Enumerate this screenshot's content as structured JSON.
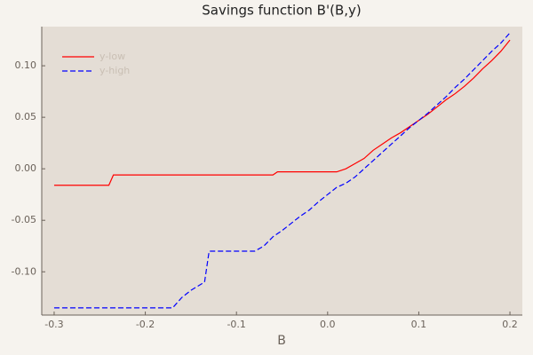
{
  "chart_data": {
    "type": "line",
    "title": "Savings function B'(B,y)",
    "x_label": "B",
    "x": [
      -0.3,
      -0.24,
      -0.235,
      -0.17,
      -0.16,
      -0.15,
      -0.135,
      -0.13,
      -0.08,
      -0.07,
      -0.06,
      -0.055,
      -0.05,
      -0.04,
      -0.03,
      -0.02,
      -0.01,
      0,
      0.01,
      0.02,
      0.03,
      0.04,
      0.05,
      0.06,
      0.07,
      0.08,
      0.09,
      0.1,
      0.11,
      0.12,
      0.13,
      0.14,
      0.15,
      0.16,
      0.17,
      0.18,
      0.19,
      0.2
    ],
    "series": [
      {
        "name": "y-low",
        "color": "#ff0000",
        "dash": "solid",
        "values": [
          -0.016,
          -0.016,
          -0.006,
          -0.006,
          -0.006,
          -0.006,
          -0.006,
          -0.006,
          -0.006,
          -0.006,
          -0.006,
          -0.003,
          -0.003,
          -0.003,
          -0.003,
          -0.003,
          -0.003,
          -0.003,
          -0.003,
          0.0,
          0.005,
          0.01,
          0.018,
          0.024,
          0.03,
          0.035,
          0.041,
          0.047,
          0.053,
          0.06,
          0.067,
          0.073,
          0.08,
          0.088,
          0.097,
          0.105,
          0.114,
          0.125
        ]
      },
      {
        "name": "y-high",
        "color": "#0000ff",
        "dash": "dashed",
        "values": [
          -0.135,
          -0.135,
          -0.135,
          -0.135,
          -0.125,
          -0.118,
          -0.11,
          -0.08,
          -0.08,
          -0.075,
          -0.066,
          -0.063,
          -0.06,
          -0.053,
          -0.046,
          -0.04,
          -0.032,
          -0.025,
          -0.018,
          -0.014,
          -0.008,
          0.0,
          0.008,
          0.016,
          0.024,
          0.032,
          0.04,
          0.047,
          0.054,
          0.062,
          0.07,
          0.079,
          0.087,
          0.096,
          0.105,
          0.114,
          0.122,
          0.132
        ]
      }
    ],
    "xlim": [
      -0.3136,
      0.2136
    ],
    "ylim": [
      -0.142,
      0.138
    ],
    "xticks": [
      -0.3,
      -0.2,
      -0.1,
      {
        "value": 0,
        "label": "0.0"
      },
      0.1,
      0.2
    ],
    "yticks": [
      {
        "value": -0.1,
        "label": "-0.10"
      },
      {
        "value": -0.05,
        "label": "-0.05"
      },
      {
        "value": 0,
        "label": "0.00"
      },
      {
        "value": 0.05,
        "label": "0.05"
      },
      {
        "value": 0.1,
        "label": "0.10"
      }
    ],
    "grid": false,
    "legend": "top-left"
  }
}
